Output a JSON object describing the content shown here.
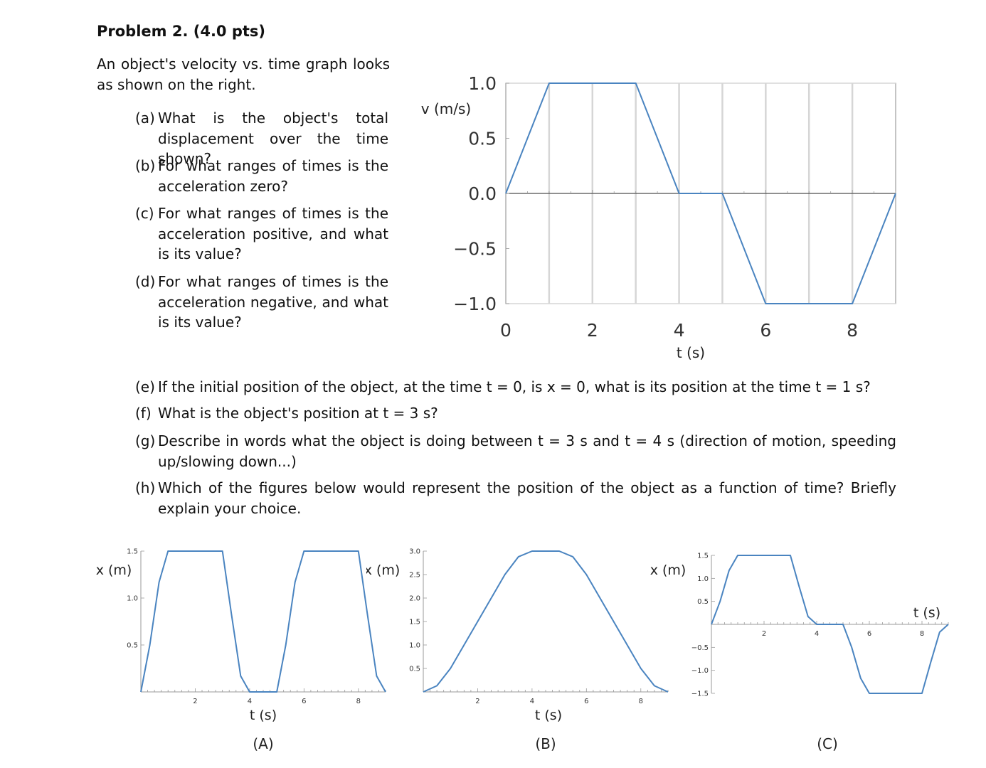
{
  "problem": {
    "title": "Problem 2. (4.0 pts)",
    "intro": "An object's velocity vs. time graph looks as shown on the right."
  },
  "questions": [
    {
      "label": "(a)",
      "text": "What is the object's total displacement over the time shown?"
    },
    {
      "label": "(b)",
      "text": "For what ranges of times is the acceleration zero?"
    },
    {
      "label": "(c)",
      "text": "For what ranges of times is the acceleration positive, and what is its value?"
    },
    {
      "label": "(d)",
      "text": "For what ranges of times is the acceleration negative, and what is its value?"
    },
    {
      "label": "(e)",
      "text": "If the initial position of the object, at the time t = 0, is x = 0, what is its position at the time t = 1 s?"
    },
    {
      "label": "(f)",
      "text": "What is the object's position at t = 3 s?"
    },
    {
      "label": "(g)",
      "text": "Describe in words what the object is doing between t = 3 s and t = 4 s (direction of motion, speeding up/slowing down...)"
    },
    {
      "label": "(h)",
      "text": "Which of the figures below would represent the position of the object as a function of time? Briefly explain your choice."
    }
  ],
  "chart_data": [
    {
      "type": "line",
      "xlabel": "t (s)",
      "ylabel": "v (m/s)",
      "xlim": [
        0,
        9
      ],
      "ylim": [
        -1.0,
        1.0
      ],
      "x_ticks": [
        "0",
        "2",
        "4",
        "6",
        "8"
      ],
      "y_ticks": [
        "1.0",
        "0.5",
        "0.0",
        "−0.5",
        "−1.0"
      ],
      "grid": "vertical",
      "series": [
        {
          "x": [
            0,
            1,
            3,
            4,
            5,
            6,
            8,
            9
          ],
          "y": [
            0,
            1,
            1,
            0,
            0,
            -1,
            -1,
            0
          ]
        }
      ],
      "color": "#4a84c0"
    },
    {
      "type": "line",
      "caption": "(A)",
      "xlabel": "t (s)",
      "ylabel": "x (m)",
      "xlim": [
        0,
        9
      ],
      "ylim": [
        0,
        1.5
      ],
      "x_ticks": [
        "2",
        "4",
        "6",
        "8"
      ],
      "y_ticks": [
        "1.5",
        "1.0",
        "0.5"
      ],
      "series": [
        {
          "x": [
            0,
            0.33,
            0.67,
            1,
            3,
            3.33,
            3.67,
            4,
            5,
            5.33,
            5.67,
            6,
            8,
            8.33,
            8.67,
            9
          ],
          "y": [
            0,
            0.5,
            1.17,
            1.5,
            1.5,
            0.83,
            0.17,
            0,
            0,
            0.5,
            1.17,
            1.5,
            1.5,
            0.83,
            0.17,
            0
          ]
        }
      ],
      "color": "#4a84c0"
    },
    {
      "type": "line",
      "caption": "(B)",
      "xlabel": "t (s)",
      "ylabel": "x (m)",
      "xlim": [
        0,
        9
      ],
      "ylim": [
        0,
        3.0
      ],
      "x_ticks": [
        "2",
        "4",
        "6",
        "8"
      ],
      "y_ticks": [
        "3.0",
        "2.5",
        "2.0",
        "1.5",
        "1.0",
        "0.5"
      ],
      "series": [
        {
          "x": [
            0,
            0.5,
            1,
            3,
            3.5,
            4,
            5,
            5.5,
            6,
            8,
            8.5,
            9
          ],
          "y": [
            0,
            0.13,
            0.5,
            2.5,
            2.88,
            3.0,
            3.0,
            2.88,
            2.5,
            0.5,
            0.13,
            0
          ]
        }
      ],
      "color": "#4a84c0"
    },
    {
      "type": "line",
      "caption": "(C)",
      "xlabel": "t (s)",
      "ylabel": "x (m)",
      "xlim": [
        0,
        9
      ],
      "ylim": [
        -1.5,
        1.5
      ],
      "x_ticks": [
        "2",
        "4",
        "6",
        "8"
      ],
      "y_ticks": [
        "1.5",
        "1.0",
        "0.5",
        "−0.5",
        "−1.0",
        "−1.5"
      ],
      "series": [
        {
          "x": [
            0,
            0.33,
            0.67,
            1,
            3,
            3.33,
            3.67,
            4,
            5,
            5.33,
            5.67,
            6,
            8,
            8.33,
            8.67,
            9
          ],
          "y": [
            0,
            0.5,
            1.17,
            1.5,
            1.5,
            0.83,
            0.17,
            0,
            0,
            -0.5,
            -1.17,
            -1.5,
            -1.5,
            -0.83,
            -0.17,
            0
          ]
        }
      ],
      "color": "#4a84c0"
    }
  ]
}
